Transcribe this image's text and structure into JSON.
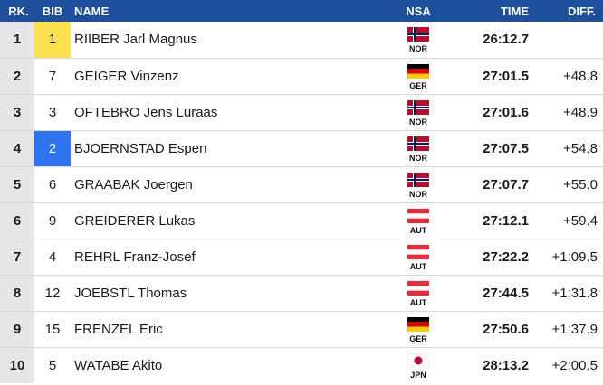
{
  "headers": {
    "rank": "RK.",
    "bib": "BIB",
    "name": "NAME",
    "nsa": "NSA",
    "time": "TIME",
    "diff": "DIFF."
  },
  "colors": {
    "header_bg": "#1e4f9c",
    "rank_bg": "#e6e6e6",
    "bib_yellow": "#fbe14d",
    "bib_blue": "#2e73f0"
  },
  "rows": [
    {
      "rank": "1",
      "bib": "1",
      "bib_highlight": "yellow",
      "name": "RIIBER Jarl Magnus",
      "nsa": "NOR",
      "flag_icon": "norway-flag-icon",
      "time": "26:12.7",
      "diff": ""
    },
    {
      "rank": "2",
      "bib": "7",
      "bib_highlight": "",
      "name": "GEIGER Vinzenz",
      "nsa": "GER",
      "flag_icon": "germany-flag-icon",
      "time": "27:01.5",
      "diff": "+48.8"
    },
    {
      "rank": "3",
      "bib": "3",
      "bib_highlight": "",
      "name": "OFTEBRO Jens Luraas",
      "nsa": "NOR",
      "flag_icon": "norway-flag-icon",
      "time": "27:01.6",
      "diff": "+48.9"
    },
    {
      "rank": "4",
      "bib": "2",
      "bib_highlight": "blue",
      "name": "BJOERNSTAD Espen",
      "nsa": "NOR",
      "flag_icon": "norway-flag-icon",
      "time": "27:07.5",
      "diff": "+54.8"
    },
    {
      "rank": "5",
      "bib": "6",
      "bib_highlight": "",
      "name": "GRAABAK Joergen",
      "nsa": "NOR",
      "flag_icon": "norway-flag-icon",
      "time": "27:07.7",
      "diff": "+55.0"
    },
    {
      "rank": "6",
      "bib": "9",
      "bib_highlight": "",
      "name": "GREIDERER Lukas",
      "nsa": "AUT",
      "flag_icon": "austria-flag-icon",
      "time": "27:12.1",
      "diff": "+59.4"
    },
    {
      "rank": "7",
      "bib": "4",
      "bib_highlight": "",
      "name": "REHRL Franz-Josef",
      "nsa": "AUT",
      "flag_icon": "austria-flag-icon",
      "time": "27:22.2",
      "diff": "+1:09.5"
    },
    {
      "rank": "8",
      "bib": "12",
      "bib_highlight": "",
      "name": "JOEBSTL Thomas",
      "nsa": "AUT",
      "flag_icon": "austria-flag-icon",
      "time": "27:44.5",
      "diff": "+1:31.8"
    },
    {
      "rank": "9",
      "bib": "15",
      "bib_highlight": "",
      "name": "FRENZEL Eric",
      "nsa": "GER",
      "flag_icon": "germany-flag-icon",
      "time": "27:50.6",
      "diff": "+1:37.9"
    },
    {
      "rank": "10",
      "bib": "5",
      "bib_highlight": "",
      "name": "WATABE Akito",
      "nsa": "JPN",
      "flag_icon": "japan-flag-icon",
      "time": "28:13.2",
      "diff": "+2:00.5"
    }
  ]
}
